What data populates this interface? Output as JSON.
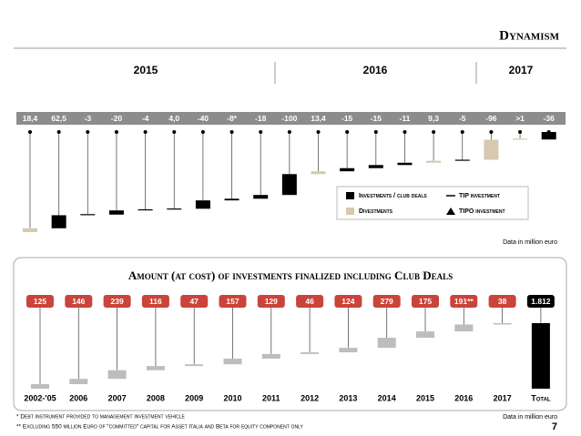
{
  "header": "Dynamism",
  "footnotes": [
    "* Debt instrument provided to management investment vehicle",
    "** Excluding 550 million Euro of \"committed\" capital for Asset Italia and Beta for equity component only"
  ],
  "page_number": "7",
  "chart_data": [
    {
      "type": "waterfall",
      "groups": [
        "2015",
        "2016",
        "2017"
      ],
      "values": [
        18.4,
        62.5,
        -3,
        -20,
        -4,
        4,
        -40,
        -8,
        -18,
        -100,
        13.4,
        -15,
        -15,
        -11,
        9.3,
        -5,
        -96,
        1,
        -36
      ],
      "value_labels": [
        "18,4",
        "62,5",
        "-3",
        "-20",
        "-4",
        "4,0",
        "-40",
        "-8*",
        "-18",
        "-100",
        "13,4",
        "-15",
        "-15",
        "-11",
        "9,3",
        "-5",
        "-96",
        ">1",
        "-36"
      ],
      "colors": [
        "#d8c8b0",
        "#000000",
        "#000000",
        "#000000",
        "#000000",
        "#000000",
        "#000000",
        "#000000",
        "#000000",
        "#000000",
        "#d8c8b0",
        "#000000",
        "#000000",
        "#000000",
        "#d8c8b0",
        "#000000",
        "#d8c8b0",
        "#d8c8b0",
        "#000000"
      ],
      "legend": [
        {
          "name": "Investments / club deals",
          "color": "#000000",
          "marker": "square"
        },
        {
          "name": "TIP investment",
          "color": "#000000",
          "marker": "line"
        },
        {
          "name": "Divestments",
          "color": "#d8c8b0",
          "marker": "square"
        },
        {
          "name": "TIPO investment",
          "color": "#000000",
          "marker": "triangle"
        }
      ],
      "note": "Data in million euro"
    },
    {
      "type": "waterfall",
      "title": "Amount (at cost) of investments finalized including Club Deals",
      "categories": [
        "2002-'05",
        "2006",
        "2007",
        "2008",
        "2009",
        "2010",
        "2011",
        "2012",
        "2013",
        "2014",
        "2015",
        "2016",
        "2017",
        "Total"
      ],
      "values": [
        125,
        146,
        239,
        116,
        47,
        157,
        129,
        46,
        124,
        279,
        175,
        191,
        38,
        1812
      ],
      "value_labels": [
        "125",
        "146",
        "239",
        "116",
        "47",
        "157",
        "129",
        "46",
        "124",
        "279",
        "175",
        "191**",
        "38",
        "1.812"
      ],
      "color": "#bdbdbd",
      "total_color": "#000000",
      "label_color": "#c9443a",
      "note": "Data in million euro"
    }
  ]
}
